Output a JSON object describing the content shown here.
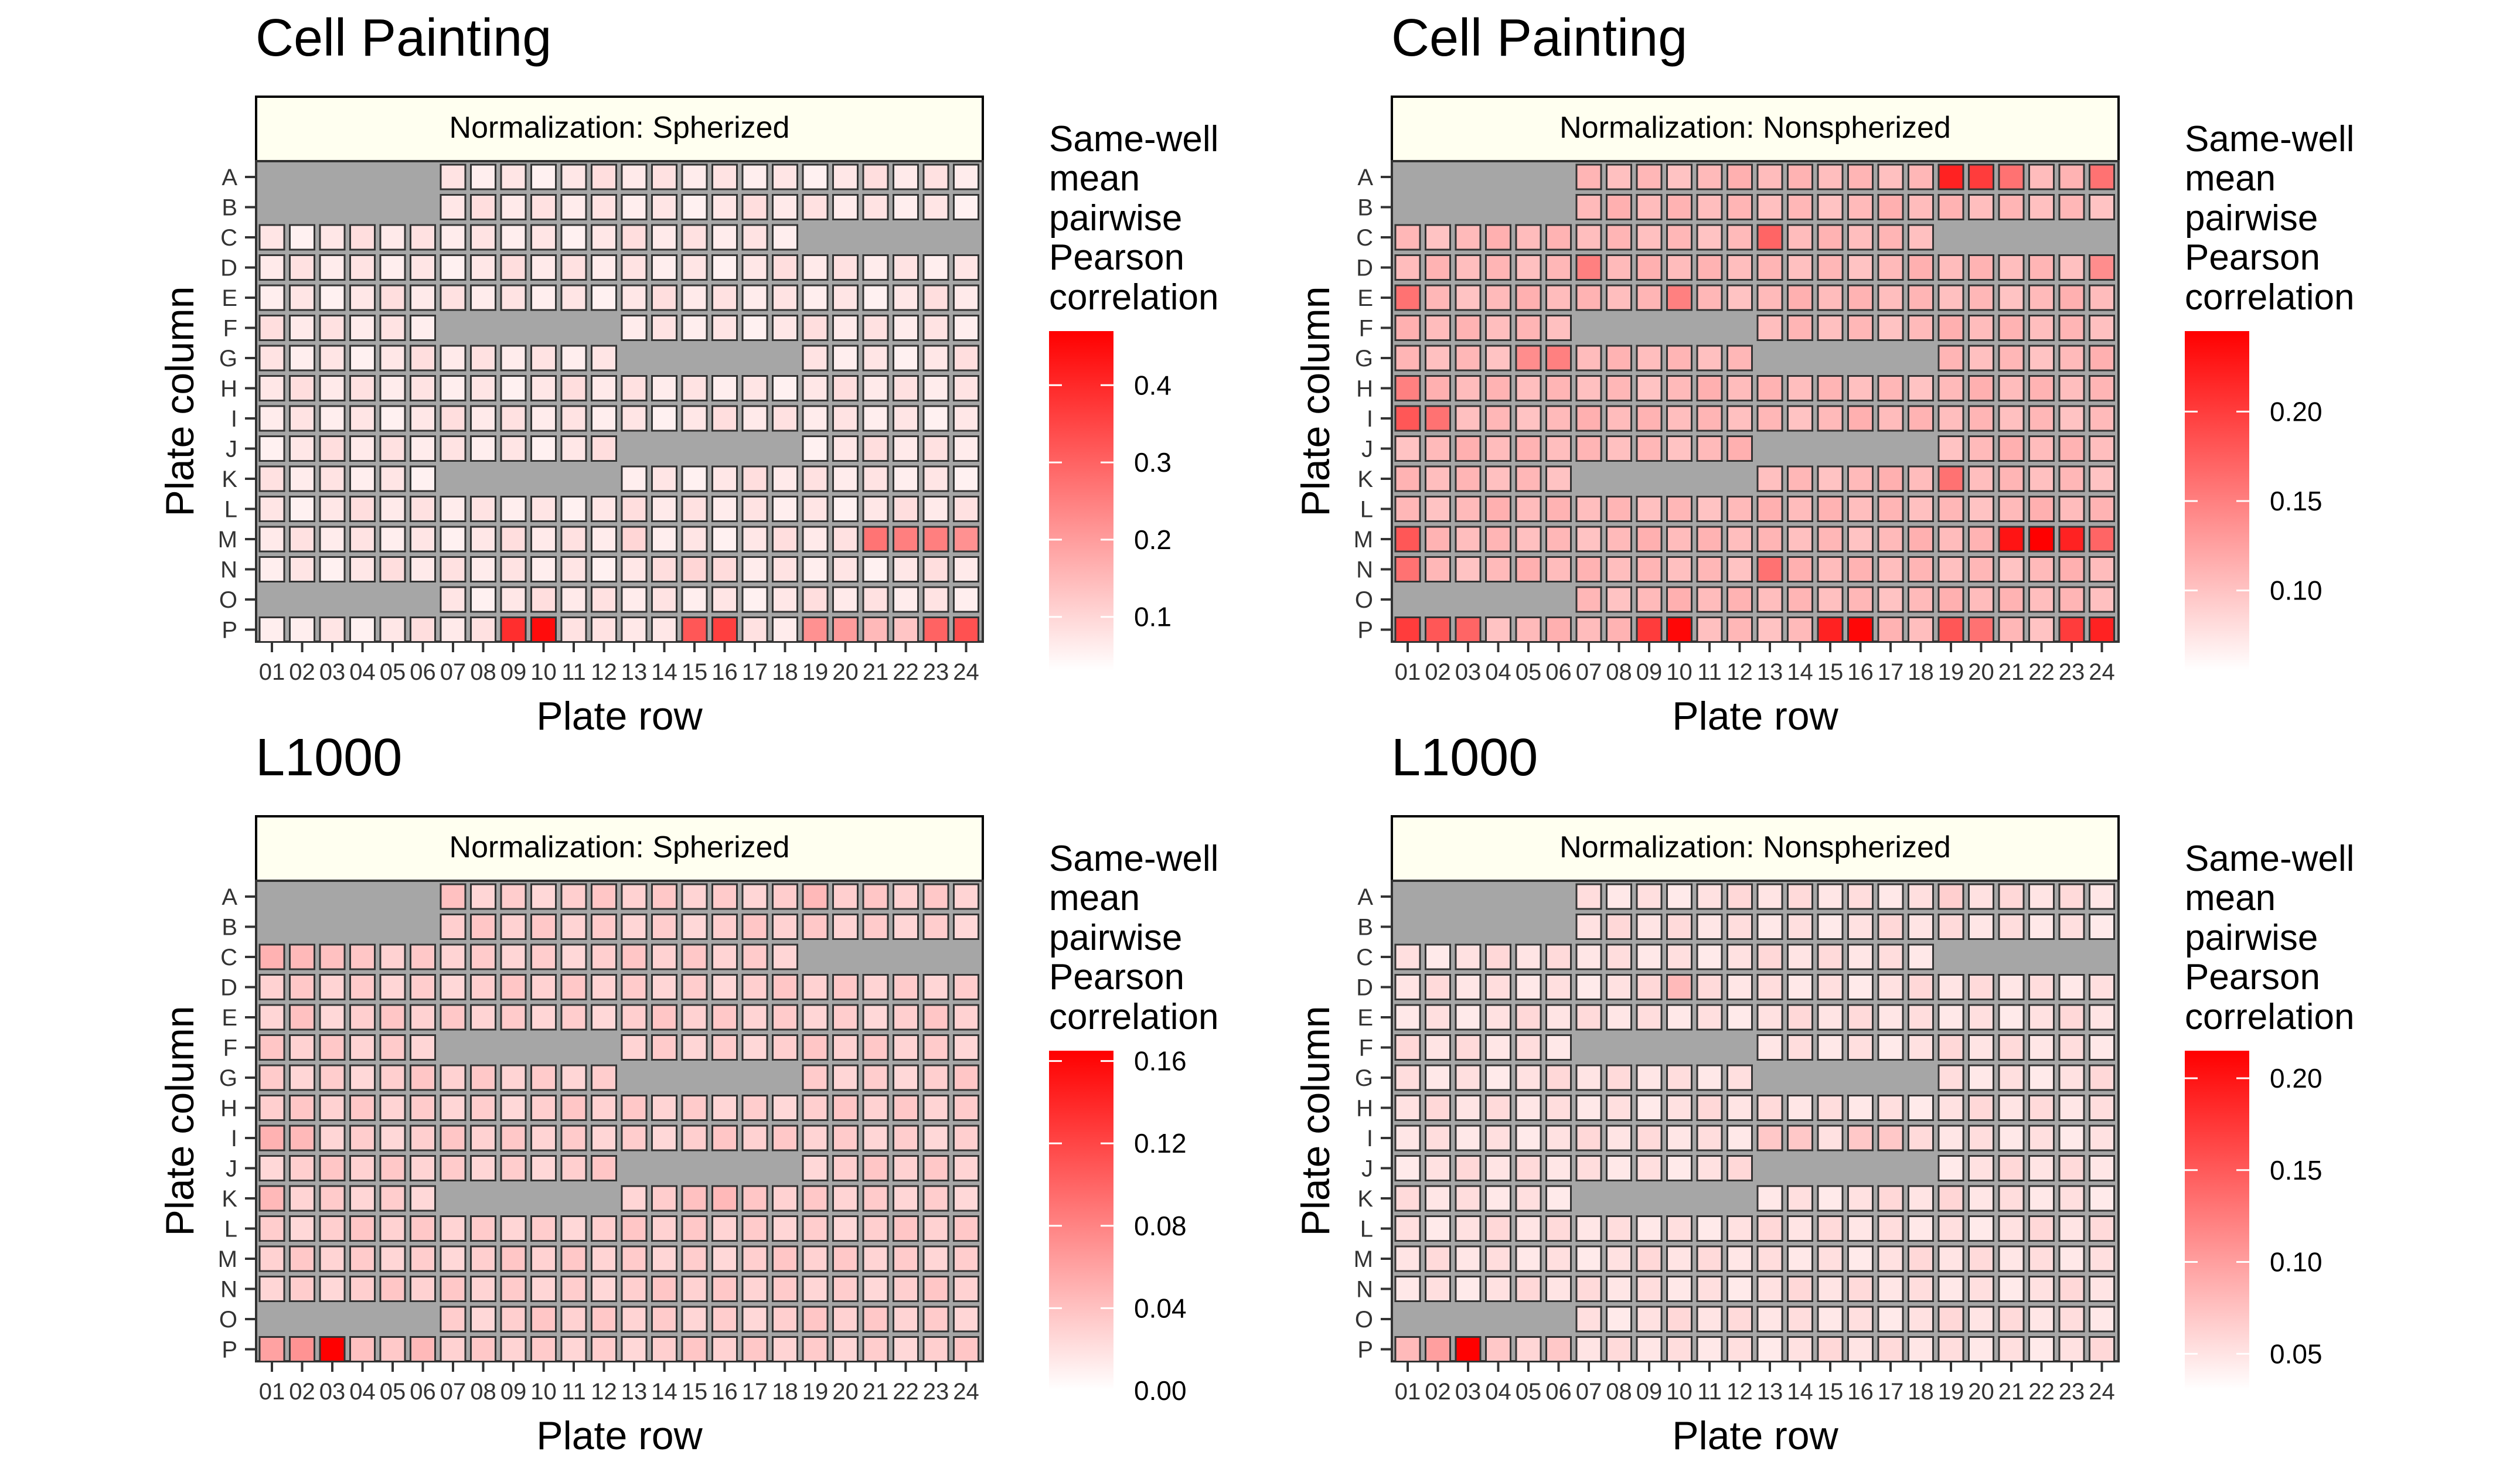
{
  "figure": {
    "legend_title_lines": [
      "Same-well",
      "mean",
      "pairwise",
      "Pearson",
      "correlation"
    ],
    "x_axis_label": "Plate row",
    "y_axis_label": "Plate column",
    "row_labels": [
      "A",
      "B",
      "C",
      "D",
      "E",
      "F",
      "G",
      "H",
      "I",
      "J",
      "K",
      "L",
      "M",
      "N",
      "O",
      "P"
    ],
    "column_labels": [
      "01",
      "02",
      "03",
      "04",
      "05",
      "06",
      "07",
      "08",
      "09",
      "10",
      "11",
      "12",
      "13",
      "14",
      "15",
      "16",
      "17",
      "18",
      "19",
      "20",
      "21",
      "22",
      "23",
      "24"
    ],
    "colors": {
      "missing_well": "#a6a6a6",
      "low": "#ffffff",
      "high": "#ff0000",
      "strip_fill": "#fffff0",
      "cell_border": "#333333"
    }
  },
  "chart_data": [
    {
      "type": "heatmap",
      "title": "Cell Painting",
      "facet": "Normalization: Spherized",
      "xlabel": "Plate row",
      "ylabel": "Plate column",
      "legend_title": "Same-well mean pairwise Pearson correlation",
      "color_range": [
        0.03,
        0.47
      ],
      "legend_ticks": [
        "0.1",
        "0.2",
        "0.3",
        "0.4"
      ],
      "legend_tick_values": [
        0.1,
        0.2,
        0.3,
        0.4
      ],
      "baseline": 0.055,
      "special_wells": {
        "P09": 0.39,
        "P10": 0.45,
        "P15": 0.32,
        "P16": 0.36,
        "P19": 0.22,
        "P20": 0.2,
        "P21": 0.15,
        "P22": 0.13,
        "P23": 0.3,
        "P24": 0.33,
        "M21": 0.27,
        "M22": 0.25,
        "M23": 0.25,
        "M24": 0.22,
        "N15": 0.1,
        "N16": 0.09,
        "M13": 0.1,
        "P11": 0.08,
        "P12": 0.08,
        "P13": 0.07,
        "P01": 0.06
      }
    },
    {
      "type": "heatmap",
      "title": "Cell Painting",
      "facet": "Normalization: Nonspherized",
      "xlabel": "Plate row",
      "ylabel": "Plate column",
      "legend_title": "Same-well mean pairwise Pearson correlation",
      "color_range": [
        0.055,
        0.245
      ],
      "legend_ticks": [
        "0.10",
        "0.15",
        "0.20"
      ],
      "legend_tick_values": [
        0.1,
        0.15,
        0.2
      ],
      "baseline": 0.1,
      "special_wells": {
        "A19": 0.22,
        "A20": 0.2,
        "A21": 0.16,
        "A24": 0.16,
        "C13": 0.17,
        "D07": 0.15,
        "E01": 0.16,
        "E10": 0.15,
        "G05": 0.14,
        "G06": 0.15,
        "H01": 0.15,
        "I01": 0.18,
        "I02": 0.16,
        "K19": 0.16,
        "M01": 0.18,
        "M21": 0.23,
        "M22": 0.245,
        "M23": 0.22,
        "M24": 0.17,
        "N01": 0.16,
        "N13": 0.16,
        "D24": 0.14,
        "P01": 0.2,
        "P02": 0.18,
        "P03": 0.17,
        "P09": 0.2,
        "P10": 0.24,
        "P15": 0.22,
        "P16": 0.24,
        "P19": 0.18,
        "P20": 0.16,
        "P23": 0.2,
        "P24": 0.22
      }
    },
    {
      "type": "heatmap",
      "title": "L1000",
      "facet": "Normalization: Spherized",
      "xlabel": "Plate row",
      "ylabel": "Plate column",
      "legend_title": "Same-well mean pairwise Pearson correlation",
      "color_range": [
        0.0,
        0.165
      ],
      "legend_ticks": [
        "0.00",
        "0.04",
        "0.08",
        "0.12",
        "0.16"
      ],
      "legend_tick_values": [
        0.0,
        0.04,
        0.08,
        0.12,
        0.16
      ],
      "baseline": 0.025,
      "special_wells": {
        "P01": 0.06,
        "P02": 0.07,
        "P03": 0.165,
        "P04": 0.04,
        "P05": 0.035,
        "P06": 0.045,
        "C01": 0.05,
        "C02": 0.045,
        "C03": 0.04,
        "I01": 0.05,
        "I02": 0.045,
        "E02": 0.04,
        "K01": 0.045,
        "A19": 0.045,
        "A07": 0.04,
        "K15": 0.04,
        "K16": 0.045
      }
    },
    {
      "type": "heatmap",
      "title": "L1000",
      "facet": "Normalization: Nonspherized",
      "xlabel": "Plate row",
      "ylabel": "Plate column",
      "legend_title": "Same-well mean pairwise Pearson correlation",
      "color_range": [
        0.03,
        0.215
      ],
      "legend_ticks": [
        "0.05",
        "0.10",
        "0.15",
        "0.20"
      ],
      "legend_tick_values": [
        0.05,
        0.1,
        0.15,
        0.2
      ],
      "baseline": 0.045,
      "special_wells": {
        "P01": 0.08,
        "P02": 0.1,
        "P03": 0.215,
        "P04": 0.07,
        "P05": 0.06,
        "P06": 0.07,
        "D10": 0.08,
        "I13": 0.07,
        "I14": 0.07,
        "I16": 0.07,
        "I17": 0.07,
        "A19": 0.065,
        "K19": 0.06
      }
    }
  ]
}
